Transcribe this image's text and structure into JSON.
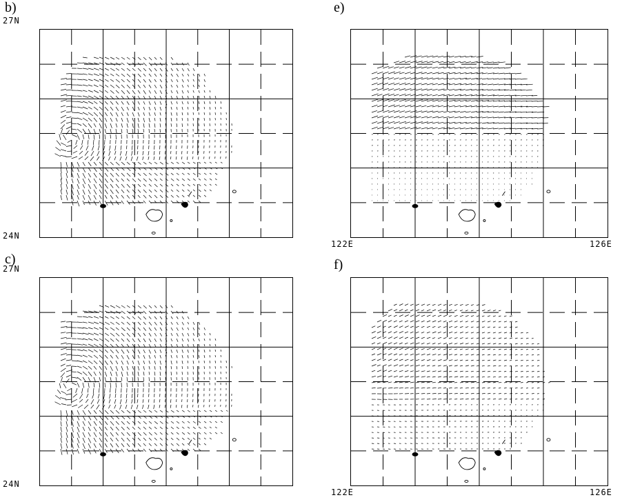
{
  "panels": [
    {
      "id": "b",
      "label": "b)",
      "top_left_label": "27N",
      "bottom_left_label": "24N",
      "bottom_axis_left": "",
      "bottom_axis_right": "",
      "vortex": "strong"
    },
    {
      "id": "e",
      "label": "e)",
      "top_left_label": "",
      "bottom_left_label": "",
      "bottom_axis_left": "122E",
      "bottom_axis_right": "126E",
      "vortex": "upper"
    },
    {
      "id": "c",
      "label": "c)",
      "top_left_label": "27N",
      "bottom_left_label": "24N",
      "bottom_axis_left": "",
      "bottom_axis_right": "",
      "vortex": "strong"
    },
    {
      "id": "f",
      "label": "f)",
      "top_left_label": "",
      "bottom_left_label": "",
      "bottom_axis_left": "122E",
      "bottom_axis_right": "126E",
      "vortex": "weak"
    }
  ],
  "colors": {
    "ink": "#000000",
    "background": "#ffffff"
  }
}
